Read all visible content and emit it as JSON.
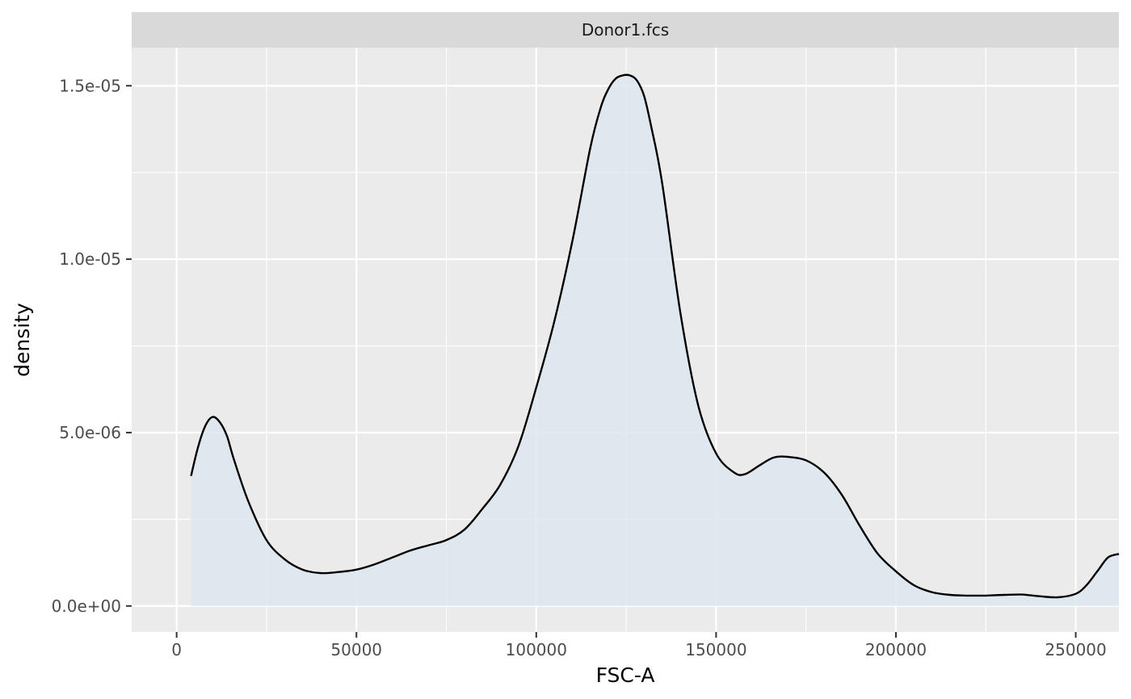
{
  "chart_data": {
    "type": "area",
    "panel_title": "Donor1.fcs",
    "xlabel": "FSC-A",
    "ylabel": "density",
    "xlim": [
      -12500,
      262000
    ],
    "ylim": [
      -7.5e-07,
      1.61e-05
    ],
    "x_ticks": [
      {
        "value": 0,
        "label": "0"
      },
      {
        "value": 50000,
        "label": "50000"
      },
      {
        "value": 100000,
        "label": "100000"
      },
      {
        "value": 150000,
        "label": "150000"
      },
      {
        "value": 200000,
        "label": "200000"
      },
      {
        "value": 250000,
        "label": "250000"
      }
    ],
    "y_ticks": [
      {
        "value": 0,
        "label": "0.0e+00"
      },
      {
        "value": 5e-06,
        "label": "5.0e-06"
      },
      {
        "value": 1e-05,
        "label": "1.0e-05"
      },
      {
        "value": 1.5e-05,
        "label": "1.5e-05"
      }
    ],
    "grid": true,
    "legend": "none",
    "colors": {
      "panel_bg": "#ebebeb",
      "strip_bg": "#d9d9d9",
      "grid": "#ffffff",
      "fill": "#dde8ee",
      "line": "#000000"
    },
    "series": [
      {
        "x": [
          4000,
          6000,
          8000,
          10000,
          12000,
          14000,
          16000,
          20000,
          25000,
          30000,
          35000,
          40000,
          45000,
          50000,
          55000,
          60000,
          65000,
          70000,
          75000,
          80000,
          85000,
          90000,
          95000,
          100000,
          105000,
          110000,
          115000,
          118000,
          120000,
          122000,
          124000,
          126000,
          128000,
          130000,
          132000,
          135000,
          140000,
          145000,
          150000,
          155000,
          158000,
          162000,
          166000,
          170000,
          175000,
          180000,
          185000,
          190000,
          195000,
          200000,
          205000,
          210000,
          215000,
          220000,
          225000,
          230000,
          235000,
          240000,
          245000,
          250000,
          253000,
          256000,
          259000,
          262000
        ],
        "y": [
          3.75e-06,
          4.6e-06,
          5.2e-06,
          5.45e-06,
          5.3e-06,
          4.9e-06,
          4.2e-06,
          3e-06,
          1.9e-06,
          1.35e-06,
          1.05e-06,
          9.5e-07,
          9.8e-07,
          1.05e-06,
          1.2e-06,
          1.4e-06,
          1.6e-06,
          1.75e-06,
          1.9e-06,
          2.2e-06,
          2.8e-06,
          3.5e-06,
          4.6e-06,
          6.3e-06,
          8.2e-06,
          1.05e-05,
          1.32e-05,
          1.44e-05,
          1.49e-05,
          1.52e-05,
          1.53e-05,
          1.53e-05,
          1.515e-05,
          1.47e-05,
          1.38e-05,
          1.22e-05,
          8.5e-06,
          5.8e-06,
          4.4e-06,
          3.85e-06,
          3.8e-06,
          4.05e-06,
          4.28e-06,
          4.3e-06,
          4.2e-06,
          3.85e-06,
          3.2e-06,
          2.3e-06,
          1.5e-06,
          1e-06,
          6e-07,
          4e-07,
          3.2e-07,
          3e-07,
          3e-07,
          3.2e-07,
          3.3e-07,
          2.8e-07,
          2.5e-07,
          3.5e-07,
          6e-07,
          1e-06,
          1.4e-06,
          1.5e-06
        ]
      }
    ]
  }
}
